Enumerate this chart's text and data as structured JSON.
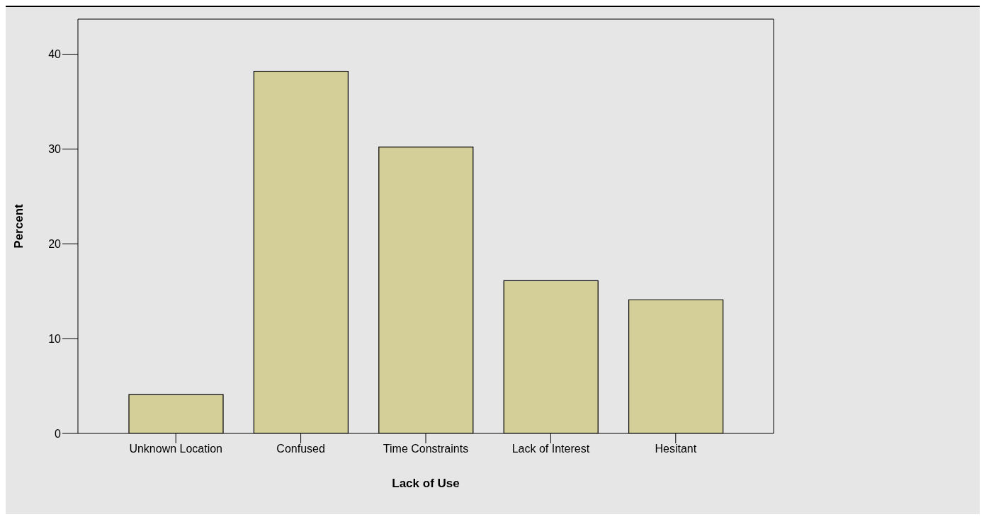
{
  "chart_data": {
    "type": "bar",
    "xlabel": "Lack of Use",
    "ylabel": "Percent",
    "categories": [
      "Unknown Location",
      "Confused",
      "Time Constraints",
      "Lack of Interest",
      "Hesitant"
    ],
    "values": [
      4.1,
      38.2,
      30.2,
      16.1,
      14.1
    ],
    "color": "#d4cf98",
    "ylim": [
      0,
      43.7
    ],
    "yticks": [
      0,
      10,
      20,
      30,
      40
    ]
  }
}
